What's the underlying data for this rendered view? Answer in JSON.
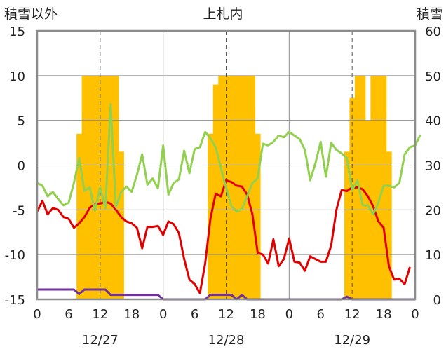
{
  "chart_data": {
    "type": "line",
    "title": "上札内",
    "y_left_label": "積雪以外",
    "y_right_label": "積雪",
    "y_left_range": [
      -15,
      15
    ],
    "y_left_ticks": [
      -15,
      -10,
      -5,
      0,
      5,
      10,
      15
    ],
    "y_right_range": [
      0,
      60
    ],
    "y_right_ticks": [
      0,
      10,
      20,
      30,
      40,
      50,
      60
    ],
    "x_hours_total": 72,
    "x_tick_labels": [
      "0",
      "6",
      "12",
      "18",
      "0",
      "6",
      "12",
      "18",
      "0",
      "6",
      "12",
      "18",
      "0"
    ],
    "date_labels": [
      "12/27",
      "12/28",
      "12/29"
    ],
    "grid": true,
    "snow_depth_bars": [
      0,
      0,
      0,
      0,
      0,
      0,
      0,
      0,
      37,
      50,
      50,
      50,
      50,
      50,
      50,
      50,
      33,
      0,
      0,
      0,
      0,
      0,
      0,
      0,
      0,
      0,
      0,
      0,
      0,
      0,
      0,
      0,
      0,
      37,
      48,
      50,
      50,
      50,
      50,
      50,
      50,
      50,
      37,
      0,
      0,
      0,
      0,
      0,
      0,
      0,
      0,
      0,
      0,
      0,
      0,
      0,
      0,
      0,
      0,
      33,
      45,
      50,
      50,
      40,
      50,
      50,
      50,
      33,
      0,
      0,
      0,
      0,
      0
    ],
    "series": [
      {
        "name": "",
        "color": "#e00000",
        "values": [
          -5.2,
          -4.0,
          -5.5,
          -4.8,
          -5.0,
          -5.8,
          -6.0,
          -7.0,
          -6.5,
          -5.8,
          -4.8,
          -4.3,
          -4.3,
          -4.1,
          -4.3,
          -5.0,
          -5.8,
          -6.3,
          -6.5,
          -7.0,
          -9.3,
          -6.9,
          -6.9,
          -6.8,
          -7.8,
          -6.3,
          -6.6,
          -7.6,
          -10.5,
          -12.8,
          -13.3,
          -14.3,
          -11.0,
          -6.0,
          -3.2,
          -3.5,
          -1.7,
          -1.9,
          -2.3,
          -2.4,
          -3.3,
          -5.5,
          -9.8,
          -10.0,
          -11.0,
          -8.3,
          -11.3,
          -10.5,
          -8.2,
          -10.8,
          -10.9,
          -11.8,
          -10.2,
          -10.5,
          -10.8,
          -10.8,
          -9.0,
          -5.0,
          -2.8,
          -2.9,
          -2.5,
          -2.5,
          -2.7,
          -3.5,
          -4.6,
          -6.3,
          -7.0,
          -11.3,
          -12.8,
          -12.7,
          -13.3,
          -11.4
        ]
      },
      {
        "name": "",
        "color": "#92d050",
        "values": [
          -2.0,
          -2.3,
          -3.5,
          -3.0,
          -3.8,
          -4.5,
          -4.2,
          -2.0,
          0.8,
          -2.9,
          -2.5,
          -5.1,
          -2.5,
          -4.8,
          6.8,
          -4.7,
          -3.0,
          -2.4,
          -3.0,
          -1.1,
          1.2,
          -2.2,
          -1.5,
          -2.6,
          2.2,
          -3.3,
          -2.0,
          -1.6,
          1.6,
          -0.9,
          1.8,
          2.0,
          3.7,
          3.0,
          2.0,
          -0.3,
          -2.6,
          -4.6,
          -5.2,
          -4.9,
          -3.5,
          -2.0,
          -1.5,
          2.4,
          2.2,
          2.6,
          3.3,
          3.1,
          3.7,
          3.3,
          2.9,
          1.7,
          -1.7,
          0.2,
          2.6,
          -1.3,
          2.5,
          1.7,
          1.3,
          0.8,
          -2.8,
          -1.7,
          -4.5,
          -4.5,
          -5.5,
          -4.2,
          -2.3,
          -2.3,
          -2.5,
          -2.0,
          1.2,
          2.0,
          2.2,
          3.4
        ]
      },
      {
        "name": "",
        "color": "#7030a0",
        "values": [
          -13.9,
          -13.9,
          -13.9,
          -13.9,
          -13.9,
          -13.9,
          -13.9,
          -13.9,
          -14.4,
          -13.9,
          -13.9,
          -13.9,
          -13.9,
          -13.9,
          -14.5,
          -14.5,
          -14.5,
          -14.5,
          -14.5,
          -14.5,
          -14.5,
          -14.5,
          -14.5,
          -14.5,
          -15.0,
          -15.0,
          -15.0,
          -15.0,
          -15.0,
          -15.0,
          -15.0,
          -15.0,
          -15.0,
          -14.5,
          -14.5,
          -14.5,
          -14.5,
          -14.5,
          -15.0,
          -14.5,
          -15.0,
          -15.0,
          -15.0,
          -15.0,
          -15.0,
          -15.0,
          -15.0,
          -15.0,
          -15.0,
          -15.0,
          -15.0,
          -15.0,
          -15.0,
          -15.0,
          -15.0,
          -15.0,
          -15.0,
          -15.0,
          -15.0,
          -14.7,
          -15.0,
          -15.0,
          -15.0,
          -15.0,
          -15.0,
          -15.0,
          -15.0,
          -15.0,
          -15.0,
          -15.0,
          -15.0,
          -15.0,
          -15.0
        ]
      }
    ]
  }
}
